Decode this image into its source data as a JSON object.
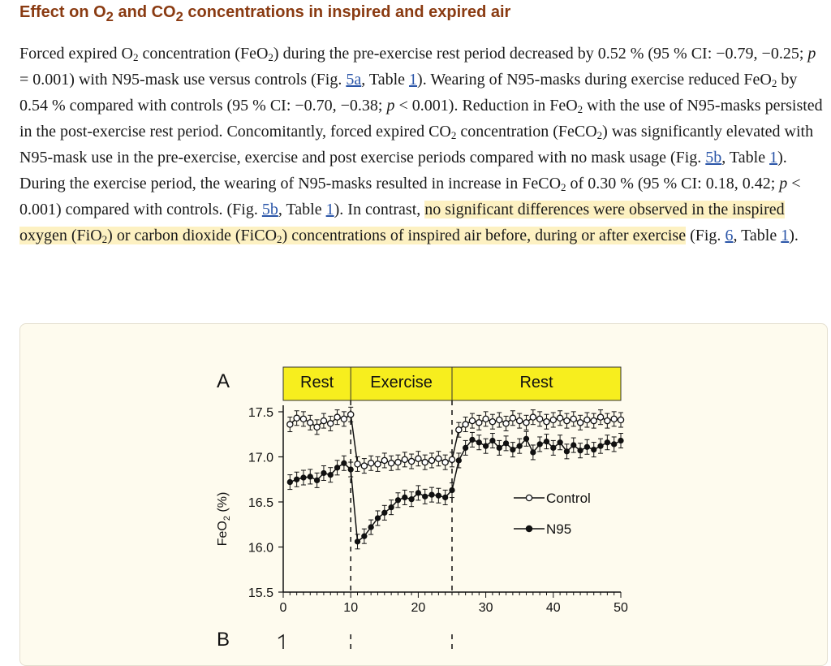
{
  "section": {
    "title_part1": "Effect on O",
    "title_sub1": "2",
    "title_part2": " and CO",
    "title_sub2": "2",
    "title_part3": " concentrations in inspired and expired air"
  },
  "paragraph": {
    "s1": "Forced expired O",
    "s2": " concentration (FeO",
    "s3": ") during the pre-exercise rest period decreased by 0.52 % (95 % CI: −0.79, −0.25; ",
    "s4": " = 0.001) with N95-mask use versus controls (Fig. ",
    "link_5a": "5a",
    "s5": ", Table ",
    "link_t1": "1",
    "s6": "). Wearing of N95-masks during exercise reduced FeO",
    "s7": " by 0.54 % compared with controls (95 % CI: −0.70, −0.38; ",
    "s8": " < 0.001). Reduction in FeO",
    "s9": " with the use of N95-masks persisted in the post-exercise rest period. Concomitantly, forced expired CO",
    "s10": " concentration (FeCO",
    "s11": ") was significantly elevated with N95-mask use in the pre-exercise, exercise and post exercise periods compared with no mask usage (Fig. ",
    "link_5b": "5b",
    "s12": ", Table ",
    "link_t1b": "1",
    "s13": "). During the exercise period, the wearing of N95-masks resulted in increase in FeCO",
    "s14": " of 0.30 % (95 % CI: 0.18, 0.42; ",
    "s15": " < 0.001) compared with controls. (Fig. ",
    "link_5b2": "5b",
    "s16": ", Table ",
    "link_t1c": "1",
    "s17": "). In contrast, ",
    "h1": "no significant differences were observed in the inspired oxygen (FiO",
    "h2": ") or carbon dioxide (FiCO",
    "h3": ") concentrations of inspired air before, during or after exercise",
    "s18": " (Fig. ",
    "link_6": "6",
    "s19": ", Table ",
    "link_t1d": "1",
    "s20": ").",
    "p": "p",
    "sub2": "2"
  },
  "figure": {
    "panel_a_label": "A",
    "panel_b_label": "B",
    "phase_labels": [
      "Rest",
      "Exercise",
      "Rest"
    ],
    "ylabel_main": "FeO",
    "ylabel_sub": "2",
    "ylabel_unit": " (%)",
    "legend": [
      "Control",
      "N95"
    ],
    "colors": {
      "phase_band": "#f7ee1e",
      "line": "#111111",
      "box_bg": "#fefbee"
    }
  },
  "chart_data": {
    "type": "line",
    "xlim": [
      0,
      50
    ],
    "ylim": [
      15.5,
      17.5
    ],
    "x_ticks": [
      0,
      10,
      20,
      30,
      40,
      50
    ],
    "y_ticks": [
      15.5,
      16.0,
      16.5,
      17.0,
      17.5
    ],
    "phase_boundaries": [
      10,
      25
    ],
    "series": [
      {
        "name": "Control",
        "marker": "open-circle",
        "x": [
          1,
          2,
          3,
          4,
          5,
          6,
          7,
          8,
          9,
          10,
          11,
          12,
          13,
          14,
          15,
          16,
          17,
          18,
          19,
          20,
          21,
          22,
          23,
          24,
          25,
          26,
          27,
          28,
          29,
          30,
          31,
          32,
          33,
          34,
          35,
          36,
          37,
          38,
          39,
          40,
          41,
          42,
          43,
          44,
          45,
          46,
          47,
          48,
          49,
          50
        ],
        "values": [
          17.36,
          17.43,
          17.42,
          17.38,
          17.33,
          17.4,
          17.37,
          17.44,
          17.42,
          17.47,
          16.92,
          16.9,
          16.93,
          16.92,
          16.96,
          16.93,
          16.94,
          16.97,
          16.95,
          16.98,
          16.94,
          16.96,
          16.98,
          16.94,
          16.97,
          17.3,
          17.36,
          17.4,
          17.38,
          17.42,
          17.39,
          17.41,
          17.37,
          17.43,
          17.4,
          17.38,
          17.44,
          17.42,
          17.39,
          17.41,
          17.43,
          17.4,
          17.42,
          17.38,
          17.41,
          17.4,
          17.44,
          17.4,
          17.42,
          17.41
        ]
      },
      {
        "name": "N95",
        "marker": "filled-circle",
        "x": [
          1,
          2,
          3,
          4,
          5,
          6,
          7,
          8,
          9,
          10,
          11,
          12,
          13,
          14,
          15,
          16,
          17,
          18,
          19,
          20,
          21,
          22,
          23,
          24,
          25,
          26,
          27,
          28,
          29,
          30,
          31,
          32,
          33,
          34,
          35,
          36,
          37,
          38,
          39,
          40,
          41,
          42,
          43,
          44,
          45,
          46,
          47,
          48,
          49,
          50
        ],
        "values": [
          16.72,
          16.75,
          16.77,
          16.78,
          16.74,
          16.82,
          16.8,
          16.88,
          16.93,
          16.86,
          16.06,
          16.12,
          16.22,
          16.32,
          16.38,
          16.44,
          16.52,
          16.55,
          16.53,
          16.6,
          16.56,
          16.58,
          16.57,
          16.55,
          16.63,
          16.96,
          17.1,
          17.19,
          17.16,
          17.12,
          17.18,
          17.1,
          17.15,
          17.08,
          17.12,
          17.2,
          17.05,
          17.14,
          17.17,
          17.1,
          17.16,
          17.06,
          17.13,
          17.07,
          17.11,
          17.08,
          17.12,
          17.16,
          17.14,
          17.18
        ]
      }
    ]
  }
}
